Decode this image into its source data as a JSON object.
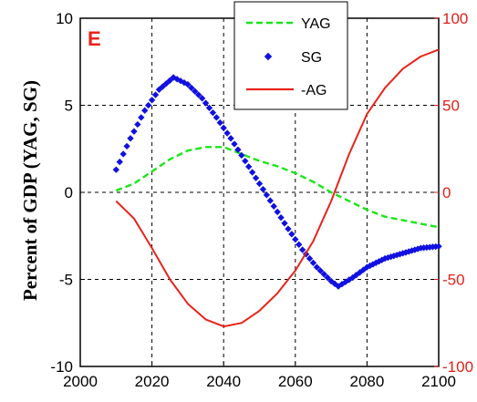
{
  "chart_data": {
    "type": "line",
    "panel_label": "E",
    "ylabel": "Percent of GDP (YAG, SG)",
    "x_ticks": [
      "2000",
      "2020",
      "2040",
      "2060",
      "2080",
      "2100"
    ],
    "y_left_ticks": [
      "10",
      "5",
      "0",
      "-5",
      "-10"
    ],
    "y_right_ticks": [
      "100",
      "50",
      "0",
      "-50",
      "-100"
    ],
    "xlim": [
      2000,
      2100
    ],
    "ylim_left": [
      -10,
      10
    ],
    "ylim_right": [
      -100,
      100
    ],
    "grid": true,
    "legend_position": "top-center",
    "series": [
      {
        "name": "YAG",
        "axis": "left",
        "style": "dashed",
        "color": "#19e619",
        "x": [
          2010,
          2015,
          2020,
          2025,
          2030,
          2035,
          2040,
          2045,
          2050,
          2055,
          2060,
          2065,
          2070,
          2075,
          2080,
          2085,
          2090,
          2095,
          2100
        ],
        "y": [
          0.1,
          0.5,
          1.2,
          1.9,
          2.4,
          2.6,
          2.6,
          2.2,
          1.8,
          1.5,
          1.1,
          0.6,
          0.0,
          -0.5,
          -1.0,
          -1.4,
          -1.6,
          -1.8,
          -2.0
        ]
      },
      {
        "name": "SG",
        "axis": "left",
        "style": "markers",
        "color": "#1010e0",
        "x": [
          2010,
          2014,
          2018,
          2022,
          2026,
          2030,
          2034,
          2038,
          2042,
          2046,
          2050,
          2054,
          2058,
          2062,
          2066,
          2070,
          2072,
          2076,
          2080,
          2085,
          2090,
          2095,
          2100
        ],
        "y": [
          1.3,
          3.1,
          4.7,
          5.9,
          6.6,
          6.2,
          5.4,
          4.3,
          3.1,
          1.8,
          0.5,
          -0.8,
          -2.1,
          -3.3,
          -4.3,
          -5.1,
          -5.4,
          -4.9,
          -4.3,
          -3.8,
          -3.5,
          -3.2,
          -3.1
        ]
      },
      {
        "name": "-AG",
        "axis": "right",
        "style": "solid",
        "color": "#e8231b",
        "x": [
          2010,
          2015,
          2020,
          2025,
          2030,
          2035,
          2040,
          2045,
          2050,
          2055,
          2060,
          2065,
          2070,
          2075,
          2080,
          2085,
          2090,
          2095,
          2100
        ],
        "y": [
          -5,
          -15,
          -32,
          -50,
          -64,
          -73,
          -77,
          -75,
          -68,
          -58,
          -45,
          -28,
          -5,
          22,
          45,
          60,
          71,
          78,
          82
        ]
      }
    ]
  }
}
